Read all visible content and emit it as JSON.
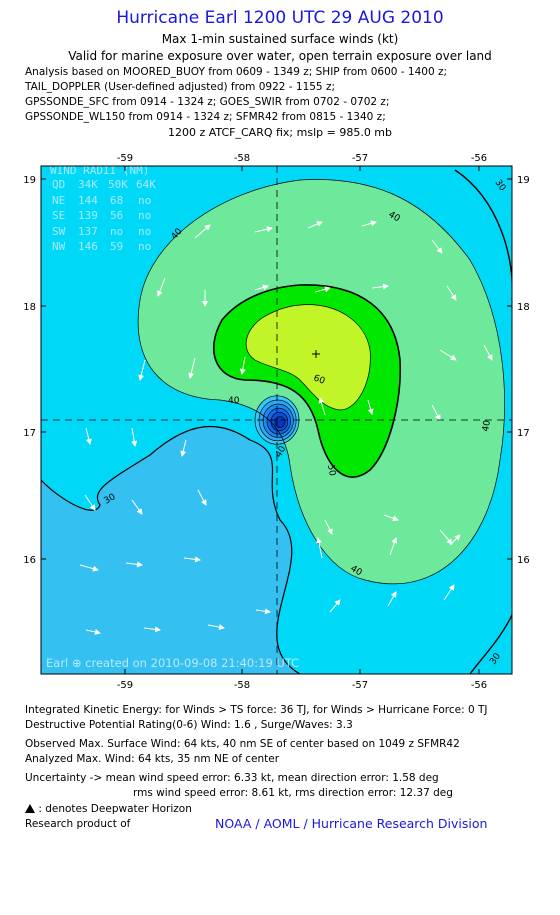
{
  "header": {
    "title": "Hurricane Earl 1200 UTC 29 AUG 2010",
    "subtitle": "Max 1-min sustained surface winds (kt)",
    "valid": "Valid for marine exposure over water, open terrain exposure over land",
    "analysis_lines": [
      "Analysis based on MOORED_BUOY from 0609 - 1349 z; SHIP from 0600 - 1400 z;",
      "TAIL_DOPPLER (User-defined adjusted) from 0922 - 1155 z;",
      "GPSSONDE_SFC from 0914 - 1324 z; GOES_SWIR from 0702 - 0702 z;",
      "GPSSONDE_WL150 from 0914 - 1324 z; SFMR42 from 0815 - 1340 z;"
    ],
    "fix": "1200 z ATCF_CARQ fix; mslp = 985.0 mb"
  },
  "map": {
    "lon_labels": [
      "-59",
      "-58",
      "-57",
      "-56"
    ],
    "lat_labels": [
      "19",
      "18",
      "17",
      "16"
    ],
    "lon_range": [
      -59.65,
      -55.75
    ],
    "lat_range": [
      15.2,
      19.2
    ],
    "center": {
      "lon": -57.72,
      "lat": 17.1
    },
    "max_wind_marker": {
      "lon": -57.35,
      "lat": 17.63
    },
    "contour_labels": [
      "30",
      "40",
      "40",
      "40",
      "40",
      "50",
      "60",
      "40",
      "40",
      "30",
      "30"
    ],
    "wind_radii_table": {
      "title": "WIND RADII (NM)",
      "headers": [
        "QD",
        "34K",
        "50K",
        "64K"
      ],
      "rows": [
        [
          "NE",
          "144",
          "68",
          "no"
        ],
        [
          "SE",
          "139",
          "56",
          "no"
        ],
        [
          "SW",
          "137",
          "no",
          "no"
        ],
        [
          "NW",
          "146",
          "59",
          "no"
        ]
      ]
    },
    "credit": "Earl ⊕ created on 2010-09-08 21:40:19 UTC",
    "colors": {
      "ocean_low": "#34c0f0",
      "band_30": "#00d8f8",
      "band_40": "#6ee89a",
      "band_50": "#00e800",
      "band_60": "#c2f528",
      "center": "#0c5af0",
      "border": "#000000"
    }
  },
  "footer": {
    "ike": "Integrated Kinetic Energy:  for Winds > TS force: 36 TJ,  for Winds > Hurricane Force: 0 TJ",
    "dpr": "Destructive Potential Rating(0-6)   Wind: 1.6 , Surge/Waves: 3.3",
    "obs": "Observed Max. Surface Wind: 64 kts, 40 nm SE of center based on 1049 z SFMR42",
    "analyzed": "Analyzed Max. Wind: 64 kts, 35 nm NE of center",
    "uncertainty1": "Uncertainty -> mean wind speed error: 6.33 kt,   mean direction error: 1.58 deg",
    "uncertainty2": "rms wind speed error: 8.61 kt,   rms direction error: 12.37 deg",
    "deepwater": ": denotes Deepwater Horizon",
    "research": "Research product of",
    "org": "NOAA / AOML / Hurricane Research Division"
  }
}
